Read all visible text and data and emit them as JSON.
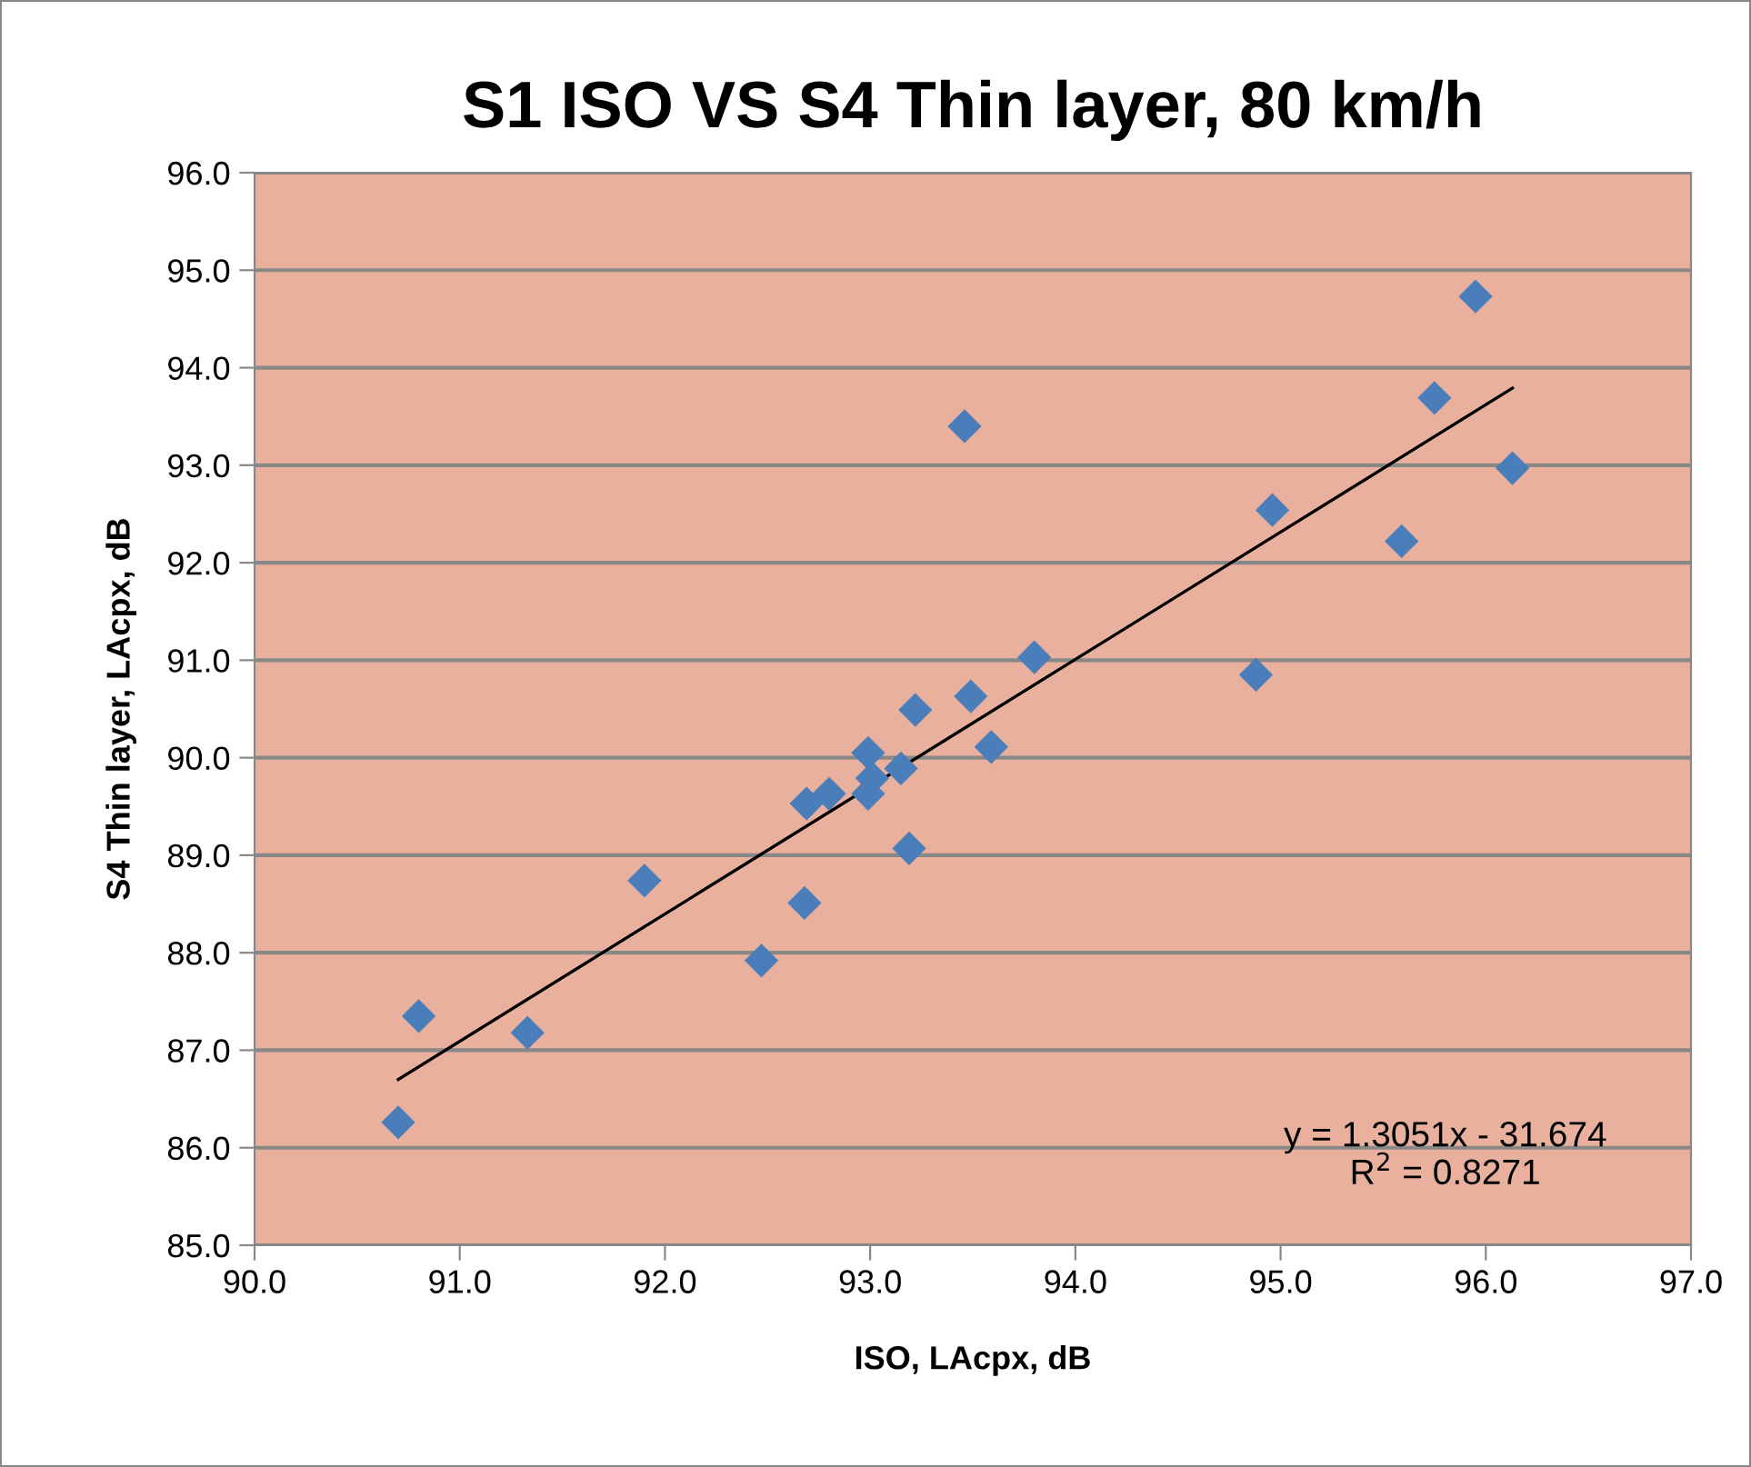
{
  "chart_data": {
    "type": "scatter",
    "title": "S1 ISO VS S4 Thin layer, 80 km/h",
    "xlabel": "ISO, LAcpx, dB",
    "ylabel": "S4 Thin layer, LAcpx, dB",
    "series": [
      {
        "color": "#4a7ebb",
        "marker": "diamond",
        "x": [
          90.7,
          90.8,
          91.33,
          91.9,
          92.47,
          92.68,
          92.69,
          92.8,
          92.99,
          92.99,
          93.01,
          93.15,
          93.19,
          93.22,
          93.49,
          93.59,
          93.8,
          93.46,
          94.88,
          94.96,
          95.59,
          95.75,
          95.95,
          96.13
        ],
        "values": [
          86.26,
          87.35,
          87.18,
          88.74,
          87.92,
          88.51,
          89.53,
          89.63,
          90.05,
          89.63,
          89.79,
          89.89,
          89.07,
          90.49,
          90.63,
          90.11,
          91.03,
          93.4,
          90.85,
          92.54,
          92.22,
          93.69,
          94.73,
          92.97
        ]
      },
      {
        "type": "line",
        "color": "#000000",
        "marker": "none",
        "x": [
          90.7,
          96.13
        ],
        "values": [
          86.7,
          93.79
        ]
      }
    ],
    "annotations": [
      "y = 1.3051x - 31.674\nR$^{2}$ = 0.8271"
    ],
    "xlim": [
      90.0,
      97.0
    ],
    "ylim": [
      85.0,
      96.0
    ],
    "xticks": [
      {
        "value": 90,
        "label": "90.0"
      },
      {
        "value": 91,
        "label": "91.0"
      },
      {
        "value": 92,
        "label": "92.0"
      },
      {
        "value": 93,
        "label": "93.0"
      },
      {
        "value": 94,
        "label": "94.0"
      },
      {
        "value": 95,
        "label": "95.0"
      },
      {
        "value": 96,
        "label": "96.0"
      },
      {
        "value": 97,
        "label": "97.0"
      }
    ],
    "yticks": [
      {
        "value": 85,
        "label": "85.0"
      },
      {
        "value": 86,
        "label": "86.0"
      },
      {
        "value": 87,
        "label": "87.0"
      },
      {
        "value": 88,
        "label": "88.0"
      },
      {
        "value": 89,
        "label": "89.0"
      },
      {
        "value": 90,
        "label": "90.0"
      },
      {
        "value": 91,
        "label": "91.0"
      },
      {
        "value": 92,
        "label": "92.0"
      },
      {
        "value": 93,
        "label": "93.0"
      },
      {
        "value": 94,
        "label": "94.0"
      },
      {
        "value": 95,
        "label": "95.0"
      },
      {
        "value": 96,
        "label": "96.0"
      }
    ],
    "grid": "y",
    "legend": false
  }
}
